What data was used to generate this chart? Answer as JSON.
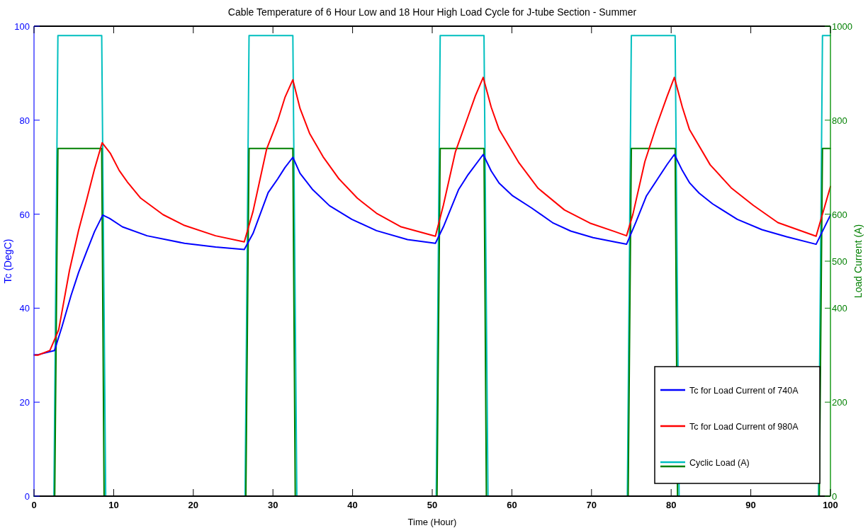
{
  "chart_data": {
    "type": "line",
    "title": "Cable Temperature of 6 Hour Low and 18 Hour High Load Cycle for J-tube Section - Summer",
    "xlabel": "Time (Hour)",
    "ylabel": "Tc (DegC)",
    "y2label": "Load Current (A)",
    "xlim": [
      0,
      100
    ],
    "xticks": [
      0,
      10,
      20,
      30,
      40,
      50,
      60,
      70,
      80,
      90,
      100
    ],
    "ylim": [
      0,
      100
    ],
    "yticks": [
      0,
      20,
      40,
      60,
      80,
      100
    ],
    "y2lim": [
      0,
      1000
    ],
    "y2ticks": [
      0,
      200,
      400,
      500,
      600,
      800,
      1000
    ],
    "legend": "bottom right",
    "series": [
      {
        "name": "Tc  for Load Current of 740A",
        "color": "#0000ff",
        "x": [
          0,
          0.5,
          2.57,
          3.5,
          4.65,
          5.6,
          6.6,
          7.6,
          8.63,
          9.5,
          11.1,
          14.2,
          18.9,
          22.8,
          26.4,
          27.5,
          29.4,
          30.6,
          31.5,
          32.5,
          33.4,
          35.0,
          37.1,
          39.9,
          43.0,
          46.9,
          50.4,
          51.4,
          53.3,
          54.5,
          56.4,
          57.4,
          58.4,
          60.1,
          62.5,
          65.1,
          67.4,
          70.2,
          72.9,
          74.4,
          75.6,
          76.9,
          78.3,
          79.5,
          80.4,
          81.4,
          82.3,
          83.5,
          85.2,
          88.3,
          91.4,
          94.5,
          98.2,
          100
        ],
        "values": [
          30.1,
          30.1,
          31.0,
          36.0,
          42.7,
          47.6,
          52.0,
          56.3,
          59.8,
          59.1,
          57.3,
          55.4,
          53.8,
          53.0,
          52.5,
          55.9,
          64.6,
          67.5,
          69.9,
          72.1,
          68.7,
          65.2,
          61.8,
          58.9,
          56.5,
          54.6,
          53.8,
          57.3,
          65.2,
          68.4,
          72.7,
          69.2,
          66.6,
          63.9,
          61.3,
          58.2,
          56.4,
          55.0,
          54.1,
          53.6,
          58.4,
          63.9,
          67.5,
          70.6,
          72.7,
          69.3,
          66.7,
          64.5,
          62.2,
          58.9,
          56.7,
          55.2,
          53.6,
          59.8
        ]
      },
      {
        "name": "Tc for Load Current of 980A",
        "color": "#ff0000",
        "x": [
          0,
          0.5,
          2.0,
          3.1,
          4.45,
          5.6,
          6.6,
          7.6,
          8.55,
          9.6,
          10.7,
          11.7,
          13.4,
          16.2,
          18.9,
          22.8,
          26.4,
          27.5,
          29.2,
          30.6,
          31.5,
          32.5,
          33.4,
          34.6,
          36.3,
          38.3,
          40.6,
          43.0,
          46.1,
          50.4,
          51.4,
          52.9,
          54.5,
          55.4,
          56.4,
          57.4,
          58.4,
          60.9,
          63.3,
          66.6,
          69.8,
          72.9,
          74.4,
          75.2,
          76.7,
          78.1,
          79.5,
          80.4,
          81.4,
          82.3,
          84.9,
          87.6,
          90.3,
          93.4,
          98.2,
          100
        ],
        "values": [
          30.0,
          30.0,
          31.0,
          35.4,
          48.0,
          56.6,
          63.0,
          69.6,
          75.2,
          72.9,
          69.3,
          66.9,
          63.4,
          59.9,
          57.6,
          55.4,
          54.1,
          60.6,
          73.8,
          79.9,
          84.8,
          88.6,
          82.5,
          77.2,
          72.2,
          67.5,
          63.4,
          60.2,
          57.3,
          55.3,
          61.9,
          73.2,
          80.8,
          85.1,
          89.1,
          82.8,
          78.0,
          70.9,
          65.5,
          60.9,
          58.1,
          56.3,
          55.4,
          60.0,
          71.2,
          78.5,
          85.1,
          89.1,
          82.8,
          78.0,
          70.5,
          65.5,
          61.9,
          58.2,
          55.3,
          65.9
        ]
      },
      {
        "name": "Cyclic Load (A)",
        "color": "#00bfbf",
        "axis": "y2",
        "x": [
          0,
          2.5,
          3,
          8.5,
          9,
          26.5,
          27,
          32.5,
          33,
          50.5,
          51,
          56.5,
          57,
          74.5,
          75,
          80.5,
          81,
          98.5,
          99,
          100
        ],
        "values": [
          0,
          0,
          980,
          980,
          0,
          0,
          980,
          980,
          0,
          0,
          980,
          980,
          0,
          0,
          980,
          980,
          0,
          0,
          980,
          980
        ]
      },
      {
        "color": "#007f00",
        "axis": "y2",
        "x": [
          0,
          2.6,
          3,
          8.5,
          8.8,
          26.6,
          27,
          32.5,
          32.8,
          50.6,
          51,
          56.5,
          56.8,
          74.6,
          75,
          80.5,
          80.8,
          98.6,
          99,
          100
        ],
        "values": [
          0,
          0,
          740,
          740,
          0,
          0,
          740,
          740,
          0,
          0,
          740,
          740,
          0,
          0,
          740,
          740,
          0,
          0,
          740,
          740
        ]
      }
    ]
  }
}
